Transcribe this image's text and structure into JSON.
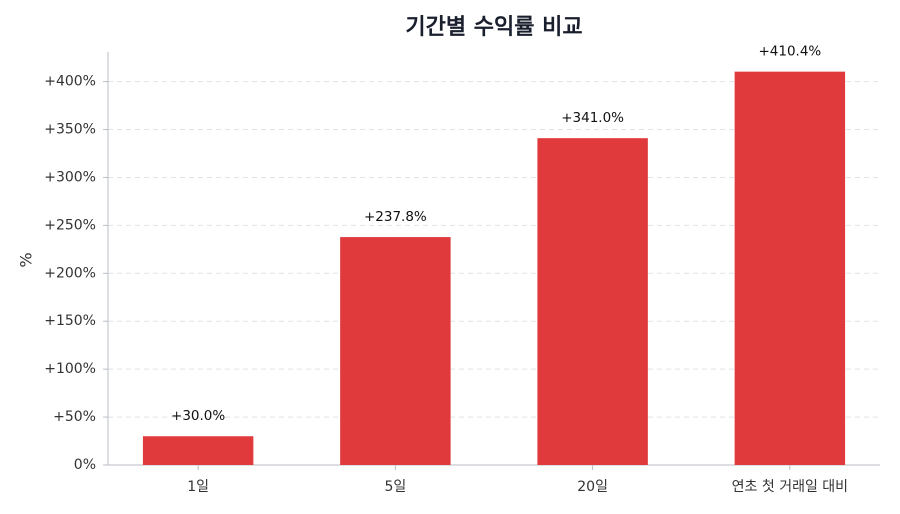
{
  "chart_data": {
    "type": "bar",
    "title": "기간별 수익률 비교",
    "y_label": "%",
    "categories": [
      "1일",
      "5일",
      "20일",
      "연초 첫 거래일 대비"
    ],
    "values": [
      30.0,
      237.8,
      341.0,
      410.4
    ],
    "value_labels": [
      "+30.0%",
      "+237.8%",
      "+341.0%",
      "+410.4%"
    ],
    "color": "#e03a3c",
    "ylim": [
      0,
      430.9
    ],
    "yticks": [
      {
        "value": 0,
        "label": "0%"
      },
      {
        "value": 50,
        "label": "+50%"
      },
      {
        "value": 100,
        "label": "+100%"
      },
      {
        "value": 150,
        "label": "+150%"
      },
      {
        "value": 200,
        "label": "+200%"
      },
      {
        "value": 250,
        "label": "+250%"
      },
      {
        "value": 300,
        "label": "+300%"
      },
      {
        "value": 350,
        "label": "+350%"
      },
      {
        "value": 400,
        "label": "+400%"
      }
    ],
    "grid": true
  }
}
